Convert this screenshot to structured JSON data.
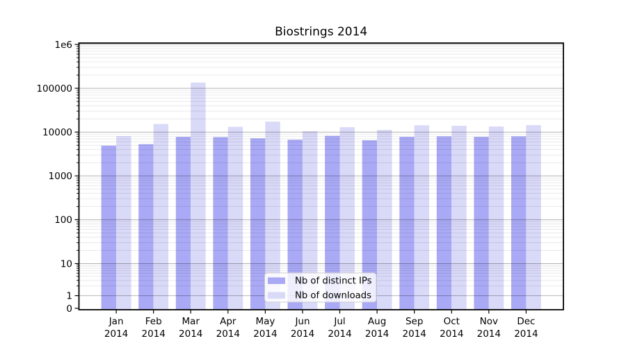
{
  "title": "Biostrings 2014",
  "chart_data": {
    "type": "bar",
    "title": "Biostrings 2014",
    "categories": [
      "Jan",
      "Feb",
      "Mar",
      "Apr",
      "May",
      "Jun",
      "Jul",
      "Aug",
      "Sep",
      "Oct",
      "Nov",
      "Dec"
    ],
    "category_year": "2014",
    "series": [
      {
        "name": "Nb of distinct IPs",
        "color": "#a9a9f5",
        "values": [
          4900,
          5300,
          7800,
          7700,
          7200,
          6700,
          8200,
          6500,
          7800,
          8000,
          7800,
          8000
        ]
      },
      {
        "name": "Nb of downloads",
        "color": "#d9d9f8",
        "values": [
          8100,
          15300,
          135000,
          13200,
          17300,
          10500,
          12900,
          11200,
          14300,
          13900,
          13400,
          14400
        ]
      }
    ],
    "yscale": "symlog",
    "ylim": [
      0,
      1080000
    ],
    "yticks": [
      {
        "value": 1000000,
        "label": "1e6"
      },
      {
        "value": 100000,
        "label": "100000"
      },
      {
        "value": 10000,
        "label": "10000"
      },
      {
        "value": 1000,
        "label": "1000"
      },
      {
        "value": 100,
        "label": "100"
      },
      {
        "value": 10,
        "label": "10"
      },
      {
        "value": 1,
        "label": "1"
      },
      {
        "value": 0,
        "label": "0"
      }
    ],
    "grid": true,
    "legend_position": "lower center",
    "colors": {
      "background": "#ffffff",
      "spine": "#000000",
      "grid_major": "rgba(0,0,0,0.30)",
      "grid_minor": "rgba(0,0,0,0.085)",
      "legend_bg": "rgba(255,255,255,0.8)",
      "legend_border": "#cccccc"
    }
  }
}
